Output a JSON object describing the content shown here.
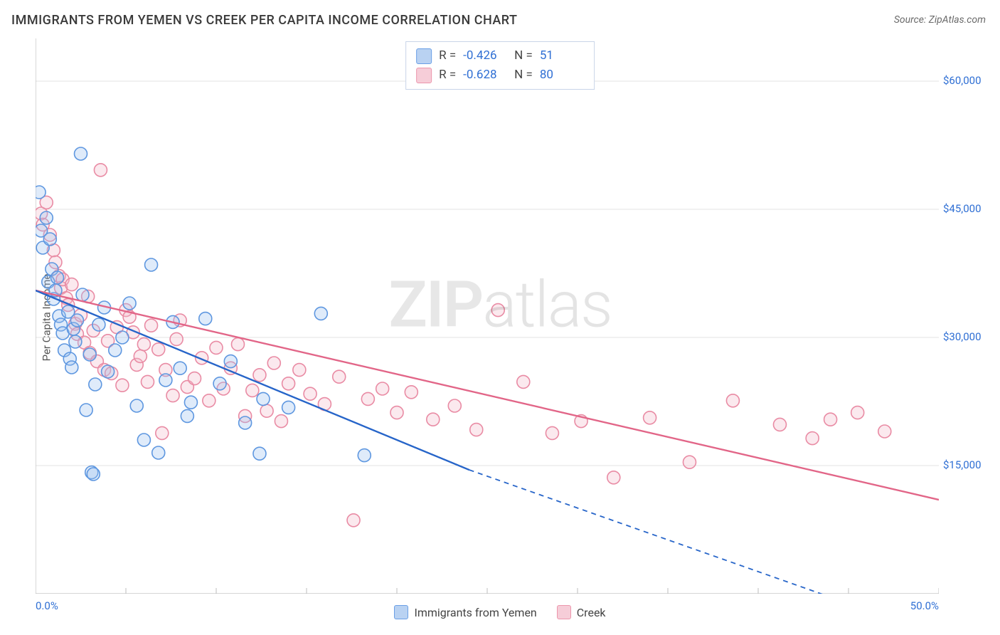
{
  "title": "IMMIGRANTS FROM YEMEN VS CREEK PER CAPITA INCOME CORRELATION CHART",
  "source": "Source: ZipAtlas.com",
  "ylabel": "Per Capita Income",
  "watermark_a": "ZIP",
  "watermark_b": "atlas",
  "chart": {
    "type": "scatter-with-regression",
    "background_color": "#ffffff",
    "grid_color": "#e3e3e3",
    "axis_color": "#bdbdbd",
    "tick_color": "#bdbdbd",
    "label_color": "#2f6fd4",
    "xlim": [
      0,
      50
    ],
    "ylim": [
      0,
      65000
    ],
    "x_min_label": "0.0%",
    "x_max_label": "50.0%",
    "x_ticks": [
      0,
      5,
      10,
      15,
      20,
      25,
      30,
      35,
      40,
      45,
      50
    ],
    "y_ticks": [
      15000,
      30000,
      45000,
      60000
    ],
    "y_tick_labels": [
      "$15,000",
      "$30,000",
      "$45,000",
      "$60,000"
    ],
    "marker_radius": 9,
    "marker_stroke_width": 1.6,
    "marker_fill_opacity": 0.32,
    "series": [
      {
        "name": "Immigrants from Yemen",
        "color_stroke": "#5e97e0",
        "color_fill": "#9dc0f0",
        "swatch_fill": "#b9d2f2",
        "swatch_stroke": "#6a9fe6",
        "R": "-0.426",
        "N": "51",
        "regression": {
          "x1": 0,
          "y1": 35500,
          "x2": 24,
          "y2": 14500,
          "solid_to_x": 24,
          "dash_to_x": 47.5,
          "dash_to_y": -3000,
          "stroke": "#2765c9",
          "width": 2.2
        },
        "points": [
          [
            0.2,
            47000
          ],
          [
            0.3,
            42500
          ],
          [
            0.4,
            40500
          ],
          [
            0.6,
            44000
          ],
          [
            0.7,
            36500
          ],
          [
            0.8,
            41500
          ],
          [
            0.9,
            38000
          ],
          [
            1.0,
            34500
          ],
          [
            1.1,
            35500
          ],
          [
            1.2,
            37000
          ],
          [
            1.3,
            32500
          ],
          [
            1.4,
            31500
          ],
          [
            1.5,
            30500
          ],
          [
            1.6,
            28500
          ],
          [
            1.8,
            33000
          ],
          [
            1.9,
            27500
          ],
          [
            2.0,
            26500
          ],
          [
            2.1,
            31000
          ],
          [
            2.2,
            29500
          ],
          [
            2.3,
            32000
          ],
          [
            2.5,
            51500
          ],
          [
            2.6,
            35000
          ],
          [
            2.8,
            21500
          ],
          [
            3.0,
            28000
          ],
          [
            3.1,
            14200
          ],
          [
            3.2,
            14000
          ],
          [
            3.3,
            24500
          ],
          [
            3.5,
            31500
          ],
          [
            3.8,
            33500
          ],
          [
            4.0,
            26000
          ],
          [
            4.4,
            28500
          ],
          [
            4.8,
            30000
          ],
          [
            5.2,
            34000
          ],
          [
            5.6,
            22000
          ],
          [
            6.0,
            18000
          ],
          [
            6.4,
            38500
          ],
          [
            6.8,
            16500
          ],
          [
            7.2,
            25000
          ],
          [
            7.6,
            31800
          ],
          [
            8.0,
            26400
          ],
          [
            8.4,
            20800
          ],
          [
            8.6,
            22400
          ],
          [
            9.4,
            32200
          ],
          [
            10.2,
            24600
          ],
          [
            10.8,
            27200
          ],
          [
            11.6,
            20000
          ],
          [
            12.4,
            16400
          ],
          [
            12.6,
            22800
          ],
          [
            14.0,
            21800
          ],
          [
            15.8,
            32800
          ],
          [
            18.2,
            16200
          ]
        ]
      },
      {
        "name": "Creek",
        "color_stroke": "#e98ba4",
        "color_fill": "#f4bccb",
        "swatch_fill": "#f6cdd8",
        "swatch_stroke": "#ec96ac",
        "R": "-0.628",
        "N": "80",
        "regression": {
          "x1": 0,
          "y1": 35500,
          "x2": 50,
          "y2": 11000,
          "solid_to_x": 50,
          "stroke": "#e26688",
          "width": 2.2
        },
        "points": [
          [
            0.3,
            44500
          ],
          [
            0.4,
            43200
          ],
          [
            0.6,
            45800
          ],
          [
            0.8,
            42000
          ],
          [
            1.0,
            40200
          ],
          [
            1.1,
            38800
          ],
          [
            1.3,
            37200
          ],
          [
            1.4,
            35800
          ],
          [
            1.5,
            36800
          ],
          [
            1.7,
            34600
          ],
          [
            1.8,
            33800
          ],
          [
            2.0,
            36200
          ],
          [
            2.2,
            31600
          ],
          [
            2.3,
            30400
          ],
          [
            2.5,
            32600
          ],
          [
            2.7,
            29400
          ],
          [
            2.9,
            34800
          ],
          [
            3.0,
            28200
          ],
          [
            3.2,
            30800
          ],
          [
            3.4,
            27200
          ],
          [
            3.6,
            49600
          ],
          [
            3.8,
            26200
          ],
          [
            4.0,
            29600
          ],
          [
            4.2,
            25800
          ],
          [
            4.5,
            31200
          ],
          [
            4.8,
            24400
          ],
          [
            5.0,
            33200
          ],
          [
            5.2,
            32400
          ],
          [
            5.4,
            30600
          ],
          [
            5.6,
            26800
          ],
          [
            5.8,
            27800
          ],
          [
            6.0,
            29200
          ],
          [
            6.2,
            24800
          ],
          [
            6.4,
            31400
          ],
          [
            6.8,
            28600
          ],
          [
            7.0,
            18800
          ],
          [
            7.2,
            26200
          ],
          [
            7.6,
            23200
          ],
          [
            7.8,
            29800
          ],
          [
            8.0,
            32000
          ],
          [
            8.4,
            24200
          ],
          [
            8.8,
            25200
          ],
          [
            9.2,
            27600
          ],
          [
            9.6,
            22600
          ],
          [
            10.0,
            28800
          ],
          [
            10.4,
            24000
          ],
          [
            10.8,
            26400
          ],
          [
            11.2,
            29200
          ],
          [
            11.6,
            20800
          ],
          [
            12.0,
            23800
          ],
          [
            12.4,
            25600
          ],
          [
            12.8,
            21400
          ],
          [
            13.2,
            27000
          ],
          [
            13.6,
            20200
          ],
          [
            14.0,
            24600
          ],
          [
            14.6,
            26200
          ],
          [
            15.2,
            23400
          ],
          [
            16.0,
            22200
          ],
          [
            16.8,
            25400
          ],
          [
            17.6,
            8600
          ],
          [
            18.4,
            22800
          ],
          [
            19.2,
            24000
          ],
          [
            20.0,
            21200
          ],
          [
            20.8,
            23600
          ],
          [
            22.0,
            20400
          ],
          [
            23.2,
            22000
          ],
          [
            24.4,
            19200
          ],
          [
            25.6,
            33200
          ],
          [
            27.0,
            24800
          ],
          [
            28.6,
            18800
          ],
          [
            30.2,
            20200
          ],
          [
            32.0,
            13600
          ],
          [
            34.0,
            20600
          ],
          [
            36.2,
            15400
          ],
          [
            38.6,
            22600
          ],
          [
            41.2,
            19800
          ],
          [
            44.0,
            20400
          ],
          [
            47.0,
            19000
          ],
          [
            45.5,
            21200
          ],
          [
            43.0,
            18200
          ]
        ]
      }
    ]
  },
  "legend_bottom": [
    {
      "label": "Immigrants from Yemen",
      "series": 0
    },
    {
      "label": "Creek",
      "series": 1
    }
  ]
}
